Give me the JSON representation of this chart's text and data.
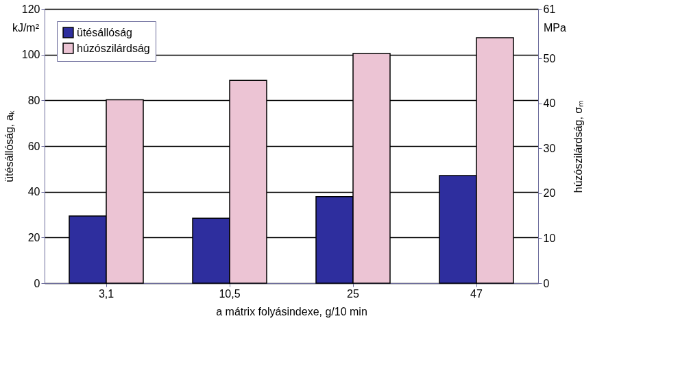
{
  "chart_data": {
    "type": "bar",
    "categories": [
      "3,1",
      "10,5",
      "25",
      "47"
    ],
    "xlabel": "a mátrix folyásindexe, g/10 min",
    "ylabel": "ütésállóság, aₖ",
    "y2label": "húzószilárdság, σₘ",
    "series": [
      {
        "name": "ütésállóság",
        "color": "#2e2e9e",
        "values": [
          29.4,
          28.4,
          37.9,
          47.1
        ]
      },
      {
        "name": "húzószilárdság",
        "color": "#ecc4d4",
        "values": [
          40.8,
          45.1,
          51.1,
          54.6
        ],
        "axis": "y2"
      }
    ],
    "ylim": [
      0,
      120
    ],
    "yticks": [
      0,
      20,
      40,
      60,
      80,
      100,
      120
    ],
    "y2lim": [
      0,
      61
    ],
    "y2ticks": [
      0,
      10,
      20,
      30,
      40,
      50,
      61
    ],
    "annotations": [
      "kJ/m²",
      "MPa"
    ],
    "grid": "y",
    "legend": "top left"
  }
}
